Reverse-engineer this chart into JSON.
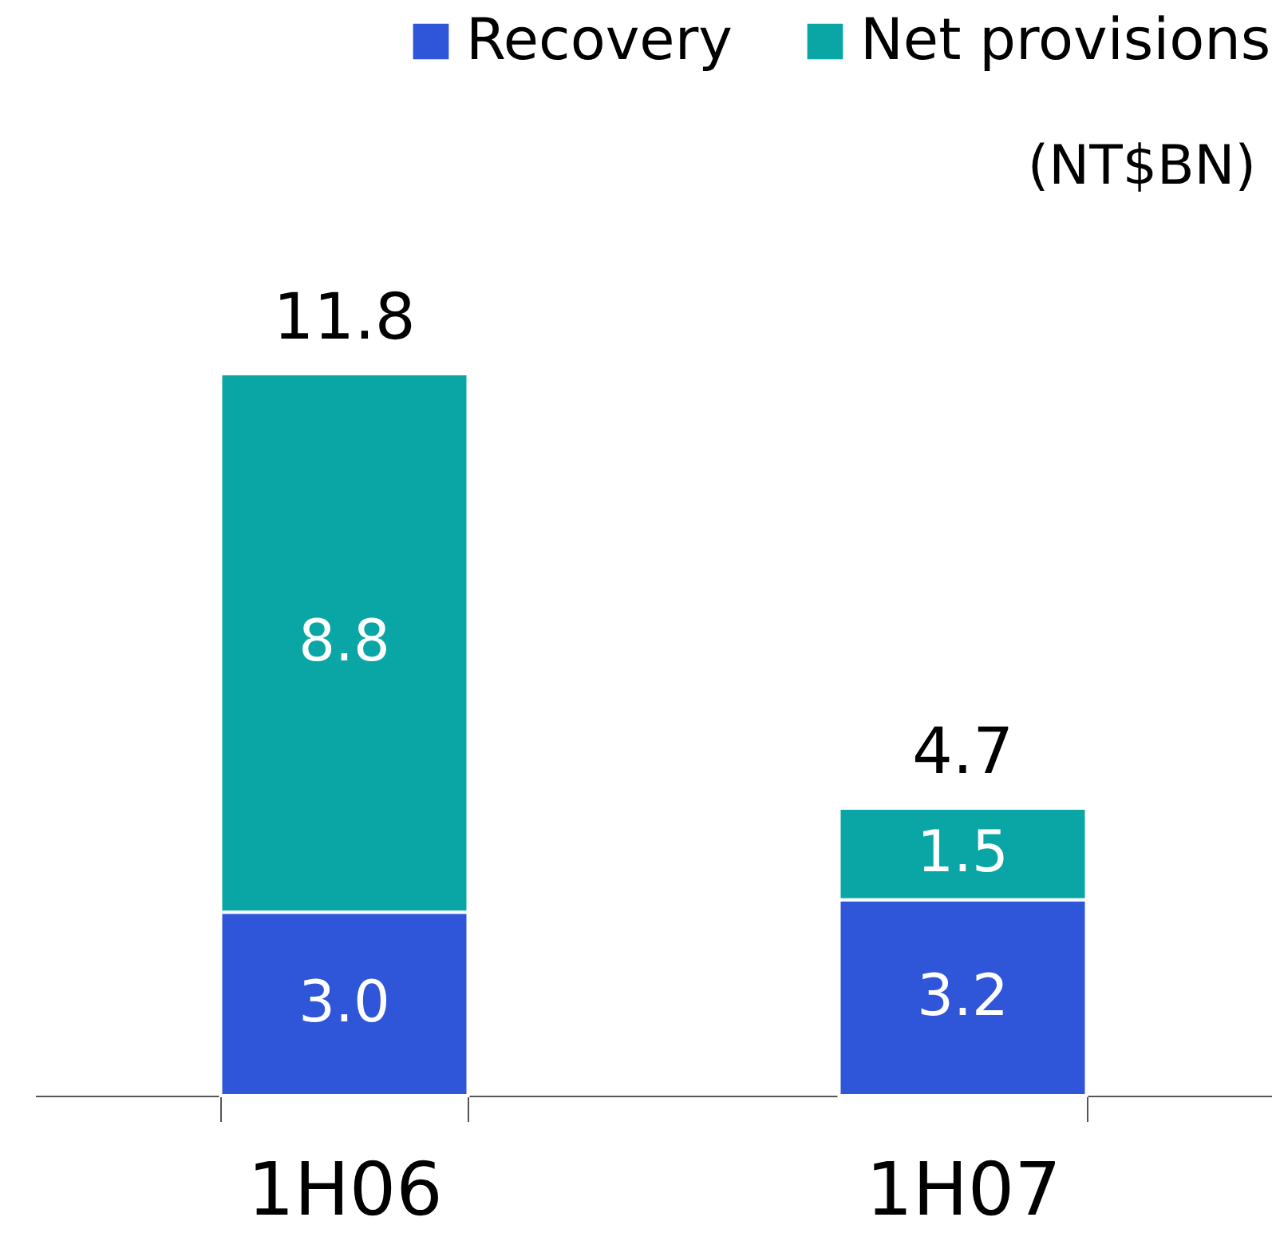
{
  "chart_data": {
    "type": "bar",
    "stacked": true,
    "categories": [
      "1H06",
      "1H07"
    ],
    "series": [
      {
        "name": "Recovery",
        "color": "#2f55d8",
        "values": [
          3.0,
          3.2
        ],
        "value_labels": [
          "3.0",
          "3.2"
        ]
      },
      {
        "name": "Net provisions",
        "color": "#0aa6a6",
        "values": [
          8.8,
          1.5
        ],
        "value_labels": [
          "8.8",
          "1.5"
        ]
      }
    ],
    "totals": [
      "11.8",
      "4.7"
    ],
    "legend": "top right",
    "annotations": [
      "(NT$BN)"
    ]
  }
}
